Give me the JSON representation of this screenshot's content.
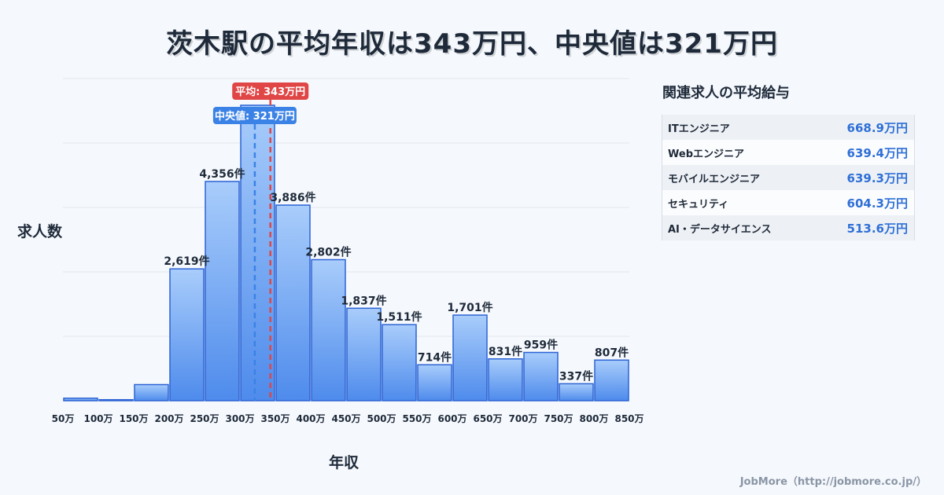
{
  "title": "茨木駅の平均年収は343万円、中央値は321万円",
  "chart_data": {
    "type": "bar",
    "ylabel": "求人数",
    "xlabel": "年収",
    "x_ticks": [
      "50万",
      "100万",
      "150万",
      "200万",
      "250万",
      "300万",
      "350万",
      "400万",
      "450万",
      "500万",
      "550万",
      "600万",
      "650万",
      "700万",
      "750万",
      "800万",
      "850万"
    ],
    "bins": [
      {
        "from": 50,
        "to": 100,
        "count": 50,
        "label": ""
      },
      {
        "from": 100,
        "to": 150,
        "count": 20,
        "label": ""
      },
      {
        "from": 150,
        "to": 200,
        "count": 320,
        "label": ""
      },
      {
        "from": 200,
        "to": 250,
        "count": 2619,
        "label": "2,619件"
      },
      {
        "from": 250,
        "to": 300,
        "count": 4356,
        "label": "4,356件"
      },
      {
        "from": 300,
        "to": 350,
        "count": 5870,
        "label": ""
      },
      {
        "from": 350,
        "to": 400,
        "count": 3886,
        "label": "3,886件"
      },
      {
        "from": 400,
        "to": 450,
        "count": 2802,
        "label": "2,802件"
      },
      {
        "from": 450,
        "to": 500,
        "count": 1837,
        "label": "1,837件"
      },
      {
        "from": 500,
        "to": 550,
        "count": 1511,
        "label": "1,511件"
      },
      {
        "from": 550,
        "to": 600,
        "count": 714,
        "label": "714件"
      },
      {
        "from": 600,
        "to": 650,
        "count": 1701,
        "label": "1,701件"
      },
      {
        "from": 650,
        "to": 700,
        "count": 831,
        "label": "831件"
      },
      {
        "from": 700,
        "to": 750,
        "count": 959,
        "label": "959件"
      },
      {
        "from": 750,
        "to": 800,
        "count": 337,
        "label": "337件"
      },
      {
        "from": 800,
        "to": 850,
        "count": 807,
        "label": "807件"
      }
    ],
    "xlim": [
      50,
      850
    ],
    "ylim": [
      0,
      6400
    ],
    "grid": true,
    "mean": {
      "value": 343,
      "label": "平均: 343万円",
      "color": "#e04646"
    },
    "median": {
      "value": 321,
      "label": "中央値: 321万円",
      "color": "#3b82e6"
    },
    "bar_color": "#5d98ef"
  },
  "sidebar": {
    "title": "関連求人の平均給与",
    "items": [
      {
        "name": "ITエンジニア",
        "value": "668.9万円"
      },
      {
        "name": "Webエンジニア",
        "value": "639.4万円"
      },
      {
        "name": "モバイルエンジニア",
        "value": "639.3万円"
      },
      {
        "name": "セキュリティ",
        "value": "604.3万円"
      },
      {
        "name": "AI・データサイエンス",
        "value": "513.6万円"
      }
    ]
  },
  "footer": "JobMore（http://jobmore.co.jp/）"
}
